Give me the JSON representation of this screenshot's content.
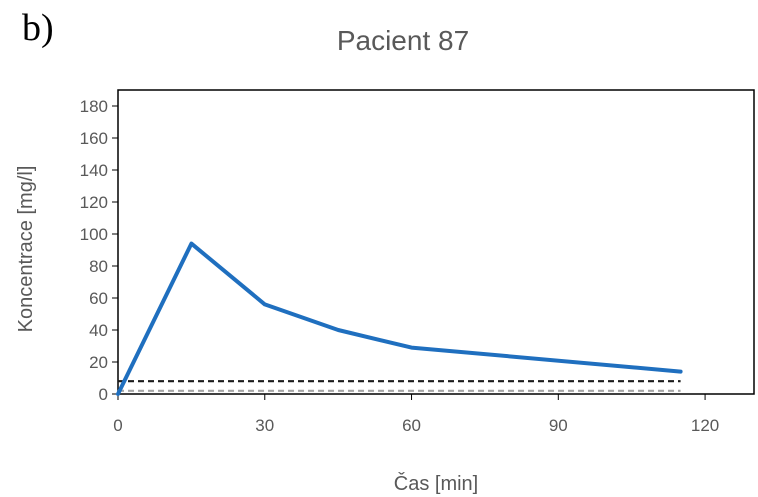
{
  "panel_label": "b)",
  "chart_data": {
    "type": "line",
    "title": "Pacient 87",
    "xlabel": "Čas [min]",
    "ylabel": "Koncentrace [mg/l]",
    "xlim": [
      0,
      130
    ],
    "ylim": [
      0,
      190
    ],
    "xticks": [
      0,
      30,
      60,
      90,
      120
    ],
    "yticks": [
      0,
      20,
      40,
      60,
      80,
      100,
      120,
      140,
      160,
      180
    ],
    "grid": false,
    "series": [
      {
        "style": "solid",
        "color": "#1F6FBF",
        "x": [
          0,
          15,
          30,
          45,
          60,
          115
        ],
        "y": [
          0,
          94,
          56,
          40,
          29,
          14
        ]
      },
      {
        "style": "dashed",
        "color": "#1a1a1a",
        "x": [
          0,
          115
        ],
        "y": [
          8,
          8
        ]
      },
      {
        "style": "dashed",
        "color": "#a6a6a6",
        "x": [
          0,
          115
        ],
        "y": [
          2,
          2
        ]
      }
    ]
  }
}
